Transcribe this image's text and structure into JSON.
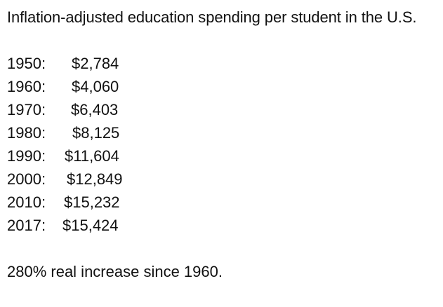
{
  "document": {
    "title": "Inflation-adjusted education spending per student in the U.S.",
    "rows": [
      {
        "year": "1950:",
        "amount": "$2,784"
      },
      {
        "year": "1960:",
        "amount": "$4,060"
      },
      {
        "year": "1970:",
        "amount": "$6,403"
      },
      {
        "year": "1980:",
        "amount": "$8,125"
      },
      {
        "year": "1990:",
        "amount": "$11,604"
      },
      {
        "year": "2000:",
        "amount": "$12,849"
      },
      {
        "year": "2010:",
        "amount": "$15,232"
      },
      {
        "year": "2017:",
        "amount": "$15,424"
      }
    ],
    "footer": "280% real increase since 1960."
  }
}
